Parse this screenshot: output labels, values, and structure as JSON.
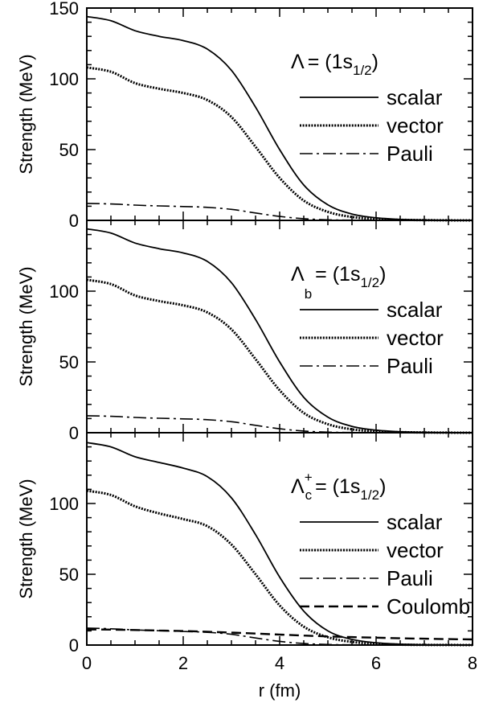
{
  "chart_data": {
    "type": "line",
    "xlabel": "r (fm)",
    "xlim": [
      0,
      8
    ],
    "x_ticks": [
      "0",
      "2",
      "4",
      "6",
      "8"
    ],
    "grid": false,
    "legend_placement": "right",
    "series_styles": {
      "scalar": "solid",
      "vector": "dotted",
      "Pauli": "dash-dot",
      "Coulomb": "dashed"
    },
    "panels": [
      {
        "label": {
          "base": "Λ",
          "sub": "",
          "sup": "",
          "rhs": "= (1s",
          "state_sub": "1/2",
          "close": ")"
        },
        "ylabel": "Strength (MeV)",
        "ylim": [
          0,
          150
        ],
        "y_ticks": [
          "0",
          "50",
          "100",
          "150"
        ],
        "x": [
          0,
          0.5,
          1,
          1.5,
          2,
          2.5,
          3,
          3.5,
          4,
          4.5,
          5,
          5.5,
          6,
          6.5,
          7,
          7.5,
          8
        ],
        "series": [
          {
            "name": "scalar",
            "values": [
              144,
              141,
              134,
              130,
              127,
              121,
              106,
              80,
              50,
              25,
              11,
              4.5,
              1.8,
              0.7,
              0.3,
              0.1,
              0.05
            ]
          },
          {
            "name": "vector",
            "values": [
              108,
              105,
              97,
              93,
              90,
              85,
              73,
              52,
              30,
              14,
              6,
              2.4,
              0.9,
              0.4,
              0.15,
              0.05,
              0.02
            ]
          },
          {
            "name": "Pauli",
            "values": [
              12,
              11.6,
              10.8,
              10.2,
              9.8,
              9.2,
              7.8,
              5.2,
              2.8,
              1.2,
              0.4,
              0.15,
              0.05,
              0.02,
              0,
              0,
              0
            ]
          }
        ]
      },
      {
        "label": {
          "base": "Λ",
          "sub": "b",
          "sup": "",
          "rhs": "= (1s",
          "state_sub": "1/2",
          "close": ")"
        },
        "ylabel": "Strength (MeV)",
        "ylim": [
          0,
          150
        ],
        "y_ticks": [
          "0",
          "50",
          "100"
        ],
        "x": [
          0,
          0.5,
          1,
          1.5,
          2,
          2.5,
          3,
          3.5,
          4,
          4.5,
          5,
          5.5,
          6,
          6.5,
          7,
          7.5,
          8
        ],
        "series": [
          {
            "name": "scalar",
            "values": [
              144,
              141,
              134,
              130,
              127,
              121,
              106,
              80,
              50,
              25,
              11,
              4.5,
              1.8,
              0.7,
              0.3,
              0.1,
              0.05
            ]
          },
          {
            "name": "vector",
            "values": [
              108,
              105,
              97,
              93,
              90,
              85,
              73,
              52,
              30,
              14,
              6,
              2.4,
              0.9,
              0.4,
              0.15,
              0.05,
              0.02
            ]
          },
          {
            "name": "Pauli",
            "values": [
              12,
              11.6,
              10.8,
              10.2,
              9.8,
              9.2,
              7.8,
              5.2,
              2.8,
              1.2,
              0.4,
              0.15,
              0.05,
              0.02,
              0,
              0,
              0
            ]
          }
        ]
      },
      {
        "label": {
          "base": "Λ",
          "sub": "c",
          "sup": "+",
          "rhs": "= (1s",
          "state_sub": "1/2",
          "close": ")"
        },
        "ylabel": "Strength (MeV)",
        "ylim": [
          0,
          150
        ],
        "y_ticks": [
          "0",
          "50",
          "100"
        ],
        "x": [
          0,
          0.5,
          1,
          1.5,
          2,
          2.5,
          3,
          3.5,
          4,
          4.5,
          5,
          5.5,
          6,
          6.5,
          7,
          7.5,
          8
        ],
        "series": [
          {
            "name": "scalar",
            "values": [
              143,
              140,
              133,
              129,
              125,
              119,
              104,
              78,
              48,
              24,
              10,
              4,
              1.6,
              0.6,
              0.25,
              0.1,
              0.05
            ]
          },
          {
            "name": "vector",
            "values": [
              109,
              106,
              98,
              93,
              89,
              84,
              71,
              50,
              28,
              13,
              5.5,
              2.2,
              0.8,
              0.3,
              0.1,
              0.05,
              0.02
            ]
          },
          {
            "name": "Pauli",
            "values": [
              12,
              11.5,
              10.7,
              10.1,
              9.6,
              9,
              7.6,
              5,
              2.6,
              1.1,
              0.4,
              0.15,
              0.05,
              0.02,
              0,
              0,
              0
            ]
          },
          {
            "name": "Coulomb",
            "values": [
              11,
              10.9,
              10.6,
              10.3,
              9.9,
              9.4,
              8.8,
              8.1,
              7.4,
              6.7,
              6.1,
              5.6,
              5.2,
              4.8,
              4.5,
              4.2,
              4
            ]
          }
        ]
      }
    ]
  }
}
